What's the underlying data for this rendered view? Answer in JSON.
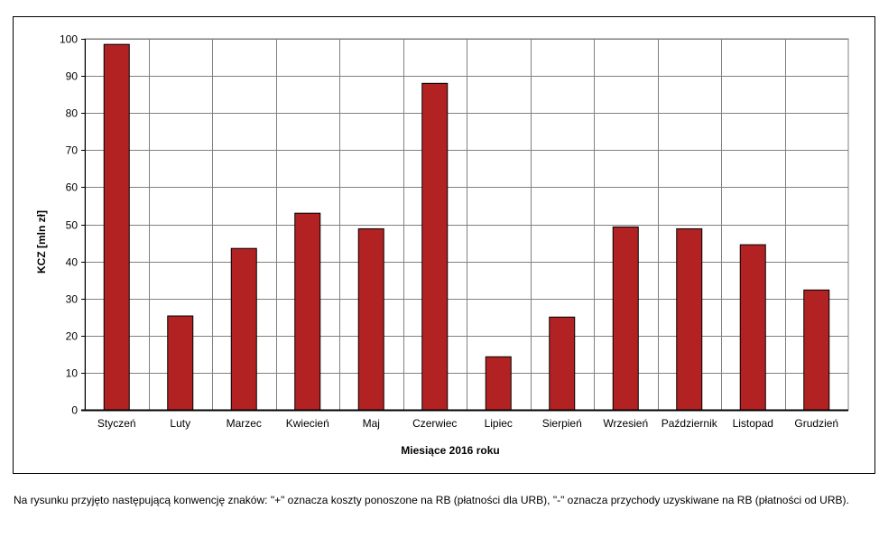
{
  "chart_data": {
    "type": "bar",
    "categories": [
      "Styczeń",
      "Luty",
      "Marzec",
      "Kwiecień",
      "Maj",
      "Czerwiec",
      "Lipiec",
      "Sierpień",
      "Wrzesień",
      "Październik",
      "Listopad",
      "Grudzień"
    ],
    "values": [
      98.5,
      25.3,
      43.5,
      53.0,
      48.8,
      88.0,
      14.3,
      25.0,
      49.3,
      48.8,
      44.5,
      32.3
    ],
    "xlabel": "Miesiące 2016  roku",
    "ylabel": "KCZ [mln zł]",
    "ylim": [
      0,
      100
    ],
    "yticks": [
      "0",
      "10",
      "20",
      "30",
      "40",
      "50",
      "60",
      "70",
      "80",
      "90",
      "100"
    ],
    "grid": true,
    "bar_color": "#b22222",
    "legend": "none"
  },
  "footnote": "Na rysunku przyjęto następującą konwencję znaków: \"+\" oznacza koszty ponoszone na RB (płatności dla URB), \"-\" oznacza przychody uzyskiwane na RB (płatności od URB)."
}
